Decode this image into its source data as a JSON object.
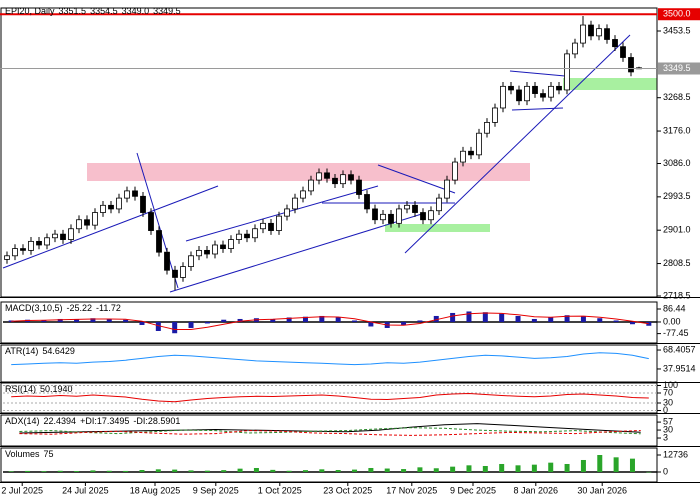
{
  "chart_data": [
    {
      "type": "candlestick",
      "title": "EPI20, Daily",
      "last_bar_labels": [
        "3351.5",
        "3354.5",
        "3349.0",
        "3349.5"
      ],
      "open": [
        2820,
        2830,
        2850,
        2845,
        2870,
        2860,
        2880,
        2890,
        2875,
        2905,
        2930,
        2915,
        2950,
        2970,
        2960,
        2990,
        3010,
        2995,
        2950,
        2900,
        2840,
        2790,
        2770,
        2800,
        2830,
        2845,
        2835,
        2860,
        2850,
        2875,
        2890,
        2880,
        2905,
        2920,
        2900,
        2940,
        2960,
        2990,
        3010,
        3040,
        3060,
        3045,
        3030,
        3055,
        3040,
        3000,
        2960,
        2930,
        2945,
        2920,
        2960,
        2970,
        2950,
        2930,
        2955,
        2990,
        3040,
        3090,
        3120,
        3110,
        3170,
        3200,
        3240,
        3300,
        3290,
        3260,
        3300,
        3280,
        3270,
        3300,
        3290,
        3390,
        3420,
        3470,
        3440,
        3460,
        3430,
        3410,
        3380,
        3351.5
      ],
      "high": [
        2842,
        2862,
        2862,
        2882,
        2882,
        2892,
        2902,
        2902,
        2917,
        2942,
        2942,
        2962,
        2982,
        2982,
        3002,
        3022,
        3022,
        3007,
        2962,
        2912,
        2852,
        2802,
        2812,
        2842,
        2857,
        2857,
        2872,
        2872,
        2887,
        2902,
        2902,
        2917,
        2932,
        2932,
        2952,
        2972,
        3002,
        3022,
        3052,
        3072,
        3072,
        3057,
        3067,
        3067,
        3052,
        3012,
        2972,
        2957,
        2957,
        2972,
        2982,
        2982,
        2962,
        2967,
        3002,
        3052,
        3102,
        3132,
        3132,
        3182,
        3212,
        3252,
        3312,
        3312,
        3302,
        3312,
        3312,
        3292,
        3312,
        3312,
        3402,
        3432,
        3495,
        3482,
        3472,
        3472,
        3442,
        3422,
        3392,
        3354.5
      ],
      "low": [
        2808,
        2818,
        2833,
        2833,
        2848,
        2848,
        2868,
        2863,
        2863,
        2893,
        2903,
        2903,
        2938,
        2948,
        2948,
        2978,
        2983,
        2938,
        2888,
        2828,
        2778,
        2735,
        2758,
        2788,
        2818,
        2823,
        2823,
        2838,
        2838,
        2863,
        2868,
        2868,
        2893,
        2888,
        2888,
        2928,
        2948,
        2978,
        2998,
        3028,
        3033,
        3018,
        3018,
        3028,
        2988,
        2948,
        2918,
        2918,
        2908,
        2908,
        2948,
        2938,
        2918,
        2918,
        2943,
        2978,
        3028,
        3078,
        3098,
        3098,
        3158,
        3188,
        3228,
        3278,
        3248,
        3248,
        3268,
        3258,
        3258,
        3278,
        3278,
        3378,
        3408,
        3428,
        3428,
        3418,
        3398,
        3368,
        3328,
        3349
      ],
      "close": [
        2830,
        2850,
        2845,
        2870,
        2860,
        2880,
        2890,
        2875,
        2905,
        2930,
        2915,
        2950,
        2970,
        2960,
        2990,
        3010,
        2995,
        2950,
        2900,
        2840,
        2790,
        2770,
        2800,
        2830,
        2845,
        2835,
        2860,
        2850,
        2875,
        2890,
        2880,
        2905,
        2920,
        2900,
        2940,
        2960,
        2990,
        3010,
        3040,
        3060,
        3045,
        3030,
        3055,
        3040,
        3000,
        2960,
        2930,
        2945,
        2920,
        2960,
        2970,
        2950,
        2930,
        2955,
        2990,
        3040,
        3090,
        3120,
        3110,
        3170,
        3200,
        3240,
        3300,
        3290,
        3260,
        3300,
        3280,
        3270,
        3300,
        3290,
        3390,
        3420,
        3470,
        3440,
        3460,
        3430,
        3410,
        3380,
        3340,
        3349.5
      ],
      "xlim": [
        0,
        81.75
      ],
      "xticks": [
        {
          "value": 2.4,
          "label": "2 Jul 2025"
        },
        {
          "value": 10.3,
          "label": "24 Jul 2025"
        },
        {
          "value": 19,
          "label": "18 Aug 2025"
        },
        {
          "value": 26.6,
          "label": "9 Sep 2025"
        },
        {
          "value": 34.6,
          "label": "1 Oct 2025"
        },
        {
          "value": 43.1,
          "label": "23 Oct 2025"
        },
        {
          "value": 51.1,
          "label": "17 Nov 2025"
        },
        {
          "value": 58.75,
          "label": "9 Dec 2025"
        },
        {
          "value": 66.6,
          "label": "8 Jan 2026"
        },
        {
          "value": 74.9,
          "label": "30 Jan 2026"
        }
      ],
      "ylim": [
        2715.7,
        3517.3
      ],
      "yticks": [
        3453.5,
        3268.5,
        {
          "value": 3176,
          "label": "3176.0"
        },
        {
          "value": 3086,
          "label": "3086.0"
        },
        2993.5,
        {
          "value": 2901,
          "label": "2901.0"
        },
        2808.5,
        2718.5
      ],
      "price_lines": [
        {
          "value": 3500,
          "label": "3500.0",
          "color": "#e60000"
        },
        {
          "value": 3349.5,
          "color": "#9a9a9a"
        }
      ]
    },
    {
      "type": "indicator",
      "title": "MACD(3,10,5)",
      "xlim": [
        0,
        40.875
      ],
      "ylim": [
        -140,
        133
      ],
      "yticks": [
        86.44,
        {
          "value": 0,
          "label": "0.00"
        },
        -77.45
      ],
      "series": [
        {
          "kind": "bar",
          "color": "#1a1aa6",
          "values": [
            10,
            15,
            12,
            20,
            18,
            25,
            20,
            15,
            -20,
            -60,
            -75,
            -40,
            -10,
            15,
            20,
            25,
            20,
            30,
            35,
            40,
            30,
            10,
            -30,
            -40,
            -20,
            10,
            40,
            60,
            70,
            65,
            55,
            40,
            20,
            30,
            45,
            40,
            25,
            10,
            -15,
            -25.22
          ]
        },
        {
          "kind": "line",
          "color": "#e60000",
          "values": [
            5,
            10,
            12,
            15,
            17,
            20,
            20,
            18,
            5,
            -25,
            -50,
            -50,
            -35,
            -15,
            5,
            15,
            18,
            24,
            30,
            35,
            33,
            22,
            0,
            -20,
            -22,
            -10,
            15,
            40,
            55,
            60,
            57,
            48,
            35,
            32,
            38,
            39,
            32,
            20,
            5,
            -11.72
          ]
        }
      ]
    },
    {
      "type": "indicator",
      "title": "ATR(14)",
      "xlim": [
        0,
        40.875
      ],
      "ylim": [
        17,
        76.5
      ],
      "yticks": [
        68.4057,
        37.9514
      ],
      "series": [
        {
          "kind": "line",
          "color": "#1e90ff",
          "values": [
            45,
            46,
            47,
            48,
            47,
            49,
            50,
            52,
            55,
            58,
            60,
            59,
            57,
            55,
            53,
            51,
            50,
            49,
            48,
            47,
            46,
            45,
            46,
            48,
            47,
            49,
            52,
            55,
            58,
            60,
            59,
            57,
            55,
            56,
            58,
            62,
            64,
            63,
            60,
            54.6429
          ]
        }
      ]
    },
    {
      "type": "indicator",
      "title": "RSI(14)",
      "xlim": [
        0,
        40.875
      ],
      "ylim": [
        -10,
        110
      ],
      "yticks": [
        100,
        70,
        30,
        0
      ],
      "grid": true,
      "series": [
        {
          "kind": "line",
          "color": "#e60000",
          "values": [
            55,
            58,
            56,
            60,
            57,
            62,
            58,
            54,
            45,
            38,
            35,
            42,
            48,
            52,
            55,
            57,
            56,
            58,
            60,
            62,
            58,
            52,
            45,
            44,
            48,
            52,
            62,
            66,
            68,
            64,
            60,
            57,
            55,
            58,
            64,
            66,
            62,
            58,
            52,
            50.194
          ],
          "value_labels": [
            null,
            null,
            null,
            null,
            null,
            null,
            null,
            null,
            null,
            null,
            null,
            null,
            null,
            null,
            null,
            null,
            null,
            null,
            null,
            null,
            null,
            null,
            null,
            null,
            null,
            null,
            null,
            null,
            null,
            null,
            null,
            null,
            null,
            null,
            null,
            null,
            null,
            null,
            null,
            "50.1940"
          ]
        }
      ]
    },
    {
      "type": "indicator",
      "title": "ADX(14)",
      "xlim": [
        0,
        40.875
      ],
      "ylim": [
        -24,
        81
      ],
      "yticks": [
        57,
        30,
        3
      ],
      "series": [
        {
          "kind": "line",
          "color": "#000000",
          "values": [
            20,
            22,
            24,
            26,
            28,
            30,
            32,
            30,
            28,
            26,
            24,
            30,
            40,
            48,
            52,
            46,
            40,
            34,
            28,
            22.4394
          ]
        },
        {
          "name": "+DI:",
          "kind": "dashed",
          "color": "#2a8a2a",
          "values": [
            25,
            28,
            22,
            18,
            24,
            30,
            28,
            20,
            22,
            26,
            28,
            34,
            38,
            36,
            30,
            26,
            24,
            28,
            22,
            17.3495
          ]
        },
        {
          "name": "-DI:",
          "kind": "dashed",
          "color": "#e60000",
          "values": [
            18,
            16,
            22,
            26,
            20,
            16,
            18,
            28,
            26,
            20,
            18,
            14,
            12,
            14,
            18,
            22,
            20,
            18,
            24,
            28.5901
          ]
        }
      ]
    },
    {
      "type": "indicator",
      "title": "Volumes",
      "xlim": [
        0,
        40.875
      ],
      "ylim": [
        -7490,
        17980
      ],
      "yticks": [
        12736,
        0
      ],
      "series": [
        {
          "kind": "bar",
          "color": "#2aa52a",
          "values": [
            500,
            800,
            600,
            900,
            700,
            1200,
            900,
            800,
            1500,
            2000,
            1800,
            1200,
            1000,
            1400,
            2500,
            3000,
            1600,
            900,
            1400,
            2000,
            1500,
            1800,
            3000,
            2600,
            2200,
            3500,
            2800,
            4000,
            5000,
            4500,
            6000,
            5000,
            5500,
            7000,
            6000,
            9000,
            12736,
            11000,
            10000,
            75
          ]
        }
      ]
    }
  ]
}
